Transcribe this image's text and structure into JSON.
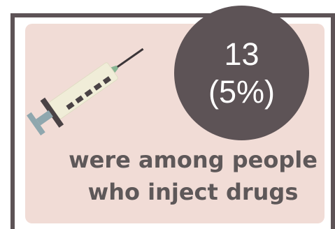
{
  "stat": {
    "count": "13",
    "percent": "(5%)"
  },
  "caption": {
    "line1": "were among people",
    "line2": "who inject drugs"
  },
  "colors": {
    "frame": "#5d5356",
    "card": "#f1dcd6",
    "circle": "#5d5356",
    "caption_text": "#5e5859",
    "syringe_barrel": "#f0edd8",
    "syringe_accent": "#88b493",
    "syringe_plunger": "#8fa7ae"
  },
  "icons": {
    "syringe": "syringe-icon"
  }
}
